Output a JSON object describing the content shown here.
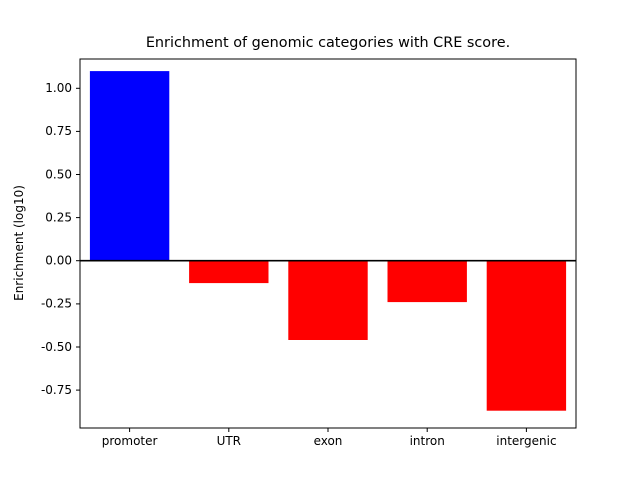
{
  "chart_data": {
    "type": "bar",
    "title": "Enrichment of genomic categories with CRE score.",
    "ylabel": "Enrichment (log10)",
    "xlabel": "",
    "categories": [
      "promoter",
      "UTR",
      "exon",
      "intron",
      "intergenic"
    ],
    "values": [
      1.1,
      -0.13,
      -0.46,
      -0.24,
      -0.87
    ],
    "bar_colors": [
      "#0000ff",
      "#ff0000",
      "#ff0000",
      "#ff0000",
      "#ff0000"
    ],
    "ylim": [
      -0.97,
      1.17
    ],
    "yticks": [
      1.0,
      0.75,
      0.5,
      0.25,
      0.0,
      -0.25,
      -0.5,
      -0.75
    ],
    "grid": false,
    "legend": "none",
    "zero_line": true,
    "zero_line_color": "#000000",
    "positive_color": "#0000ff",
    "negative_color": "#ff0000",
    "axes_color": "#000000"
  }
}
